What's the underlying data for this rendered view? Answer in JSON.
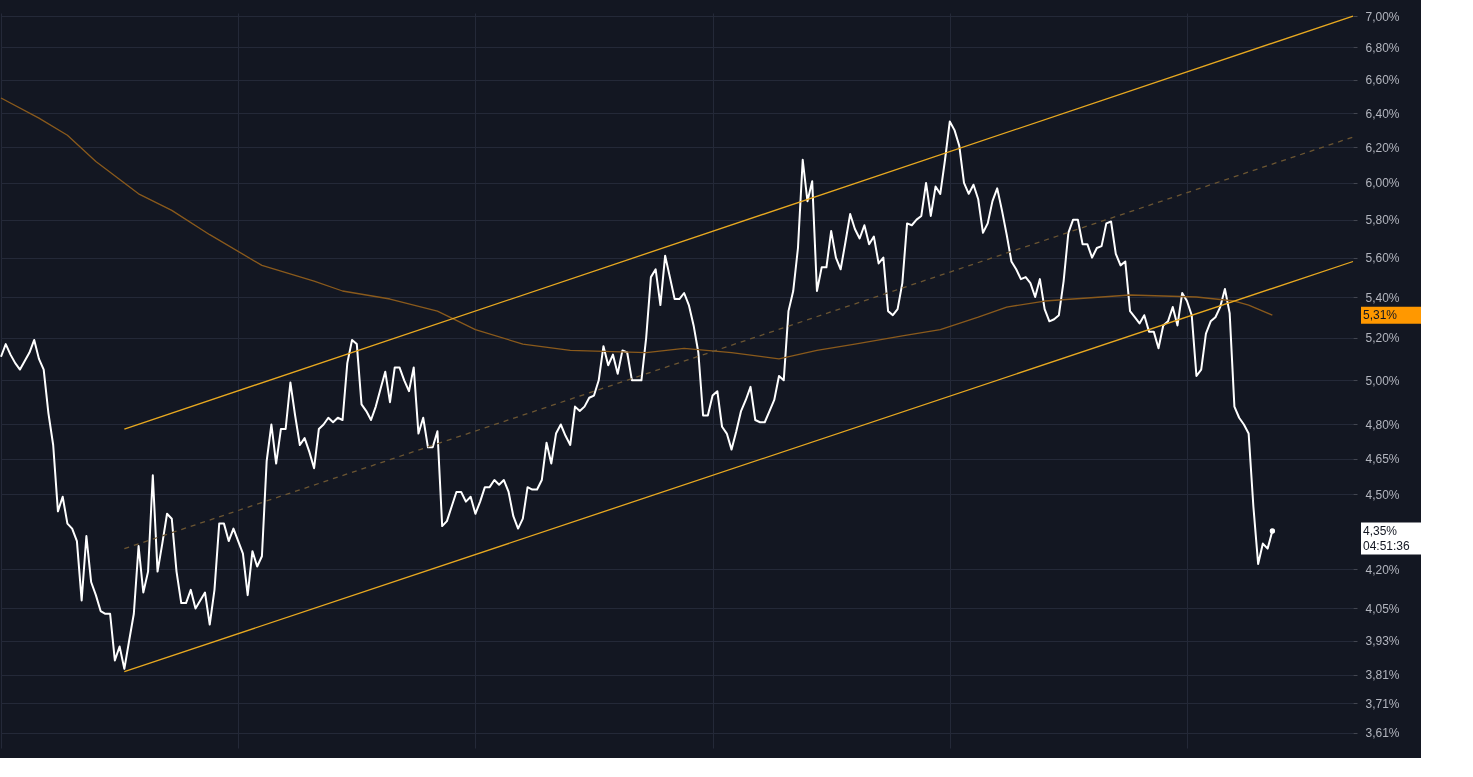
{
  "chart_data": {
    "type": "line",
    "categories": [
      null,
      null,
      null,
      null,
      null,
      null,
      null,
      null,
      null,
      null,
      null,
      null,
      null,
      null,
      null,
      null,
      null,
      null,
      null,
      null,
      null,
      null,
      null,
      null,
      null,
      null,
      null,
      null,
      null,
      null,
      null,
      null,
      null,
      null,
      null,
      null,
      null,
      null,
      null,
      null,
      null,
      null,
      null,
      null,
      null,
      null,
      null,
      null,
      null,
      null,
      null,
      null,
      null,
      null,
      null,
      null,
      null,
      null,
      null,
      null,
      null,
      null,
      null,
      null,
      null,
      null,
      null,
      null,
      null,
      null,
      null,
      null,
      null,
      null,
      null,
      null,
      null,
      null,
      null,
      null,
      null,
      null,
      null,
      null,
      null,
      null,
      null,
      null,
      null,
      null,
      null,
      null,
      null,
      null,
      null,
      null,
      null,
      null,
      null,
      null,
      null,
      null,
      null,
      null,
      null,
      null,
      null,
      null,
      null,
      null,
      null,
      null,
      null,
      null,
      null,
      null,
      null,
      null,
      null,
      null,
      null,
      null,
      null,
      null,
      null,
      null,
      null,
      null,
      null,
      null,
      null,
      null,
      null,
      null,
      null,
      null,
      null,
      null,
      null,
      null,
      null,
      null,
      null,
      null,
      null,
      null,
      null,
      null,
      null,
      null,
      null,
      null,
      null,
      null,
      null,
      null,
      null,
      null,
      null,
      null,
      null,
      null,
      null,
      null,
      null,
      null,
      null,
      null,
      null,
      null,
      null,
      null,
      null,
      null,
      null,
      null,
      null,
      null,
      null,
      null,
      null,
      null,
      null,
      null,
      null,
      null,
      null,
      null,
      null,
      null,
      null,
      null,
      null,
      null,
      null,
      null,
      null,
      null,
      null,
      null,
      null,
      null,
      null,
      null,
      null,
      null,
      null,
      null,
      null,
      null,
      null,
      null,
      null,
      null,
      null,
      null,
      null,
      null,
      null,
      null,
      null,
      null,
      null,
      null,
      null,
      null,
      null,
      null,
      null,
      null,
      null,
      null,
      null,
      null,
      null,
      null,
      null,
      null,
      null,
      null,
      null,
      null,
      null,
      null,
      null,
      null,
      null,
      null,
      null,
      null,
      null,
      null,
      null,
      null,
      null,
      null,
      null,
      null,
      null,
      null,
      null,
      null,
      null,
      null,
      null,
      null,
      null,
      null,
      null,
      null,
      null,
      null,
      null,
      null,
      null,
      null,
      null,
      null,
      null,
      null,
      null,
      null,
      null,
      null,
      null,
      null
    ],
    "ylim": [
      3.56,
      7.02
    ],
    "log": true,
    "yticks": [
      {
        "value": 3.61,
        "label": "3,61%"
      },
      {
        "value": 3.71,
        "label": "3,71%"
      },
      {
        "value": 3.81,
        "label": "3,81%"
      },
      {
        "value": 3.93,
        "label": "3,93%"
      },
      {
        "value": 4.05,
        "label": "4,05%"
      },
      {
        "value": 4.2,
        "label": "4,20%"
      },
      {
        "value": 4.5,
        "label": "4,50%"
      },
      {
        "value": 4.65,
        "label": "4,65%"
      },
      {
        "value": 4.8,
        "label": "4,80%"
      },
      {
        "value": 5.0,
        "label": "5,00%"
      },
      {
        "value": 5.2,
        "label": "5,20%"
      },
      {
        "value": 5.4,
        "label": "5,40%"
      },
      {
        "value": 5.6,
        "label": "5,60%"
      },
      {
        "value": 5.8,
        "label": "5,80%"
      },
      {
        "value": 6.0,
        "label": "6,00%"
      },
      {
        "value": 6.2,
        "label": "6,20%"
      },
      {
        "value": 6.4,
        "label": "6,40%"
      },
      {
        "value": 6.6,
        "label": "6,60%"
      },
      {
        "value": 6.8,
        "label": "6,80%"
      },
      {
        "value": 7.0,
        "label": "7,00%"
      }
    ],
    "tick_labels": "y",
    "grid": true,
    "marker": "none",
    "series": [
      {
        "color": "#ffffff",
        "line_style": "solid",
        "values": [
          5.11,
          5.17,
          5.12,
          5.08,
          5.05,
          5.09,
          5.13,
          5.19,
          5.1,
          5.05,
          4.85,
          4.71,
          4.43,
          4.49,
          4.38,
          4.36,
          4.31,
          4.08,
          4.33,
          4.15,
          4.1,
          4.04,
          4.03,
          4.03,
          3.86,
          3.91,
          3.83,
          3.93,
          4.03,
          4.29,
          4.11,
          4.19,
          4.58,
          4.19,
          4.3,
          4.42,
          4.4,
          4.19,
          4.07,
          4.07,
          4.12,
          4.05,
          4.08,
          4.11,
          3.99,
          4.12,
          4.38,
          4.38,
          4.31,
          4.36,
          4.31,
          4.26,
          4.1,
          4.27,
          4.21,
          4.25,
          4.64,
          4.8,
          4.63,
          4.78,
          4.78,
          4.99,
          4.84,
          4.71,
          4.74,
          4.68,
          4.61,
          4.78,
          4.8,
          4.83,
          4.81,
          4.83,
          4.82,
          5.08,
          5.19,
          5.17,
          4.89,
          4.86,
          4.82,
          4.88,
          4.96,
          5.04,
          4.9,
          5.06,
          5.06,
          5.0,
          4.95,
          5.06,
          4.76,
          4.83,
          4.7,
          4.7,
          4.77,
          4.37,
          4.39,
          4.45,
          4.51,
          4.51,
          4.47,
          4.49,
          4.42,
          4.47,
          4.53,
          4.53,
          4.56,
          4.54,
          4.56,
          4.51,
          4.41,
          4.36,
          4.4,
          4.53,
          4.52,
          4.52,
          4.56,
          4.72,
          4.63,
          4.76,
          4.8,
          4.75,
          4.71,
          4.88,
          4.86,
          4.88,
          4.92,
          4.93,
          5.0,
          5.16,
          5.07,
          5.12,
          5.03,
          5.14,
          5.13,
          5.0,
          5.0,
          5.0,
          5.2,
          5.5,
          5.54,
          5.36,
          5.61,
          5.5,
          5.39,
          5.39,
          5.42,
          5.36,
          5.26,
          5.13,
          4.84,
          4.84,
          4.93,
          4.95,
          4.79,
          4.76,
          4.69,
          4.77,
          4.86,
          4.91,
          4.97,
          4.82,
          4.81,
          4.81,
          4.86,
          4.91,
          5.02,
          5.0,
          5.33,
          5.43,
          5.65,
          6.13,
          5.9,
          6.01,
          5.43,
          5.55,
          5.55,
          5.74,
          5.6,
          5.54,
          5.68,
          5.83,
          5.75,
          5.7,
          5.77,
          5.67,
          5.71,
          5.57,
          5.6,
          5.33,
          5.31,
          5.34,
          5.47,
          5.78,
          5.77,
          5.8,
          5.82,
          6.0,
          5.82,
          5.98,
          5.94,
          6.13,
          6.35,
          6.3,
          6.21,
          6.0,
          5.94,
          5.99,
          5.91,
          5.73,
          5.78,
          5.9,
          5.97,
          5.85,
          5.72,
          5.58,
          5.54,
          5.49,
          5.5,
          5.47,
          5.4,
          5.49,
          5.34,
          5.28,
          5.29,
          5.31,
          5.48,
          5.73,
          5.8,
          5.8,
          5.67,
          5.67,
          5.6,
          5.65,
          5.66,
          5.78,
          5.79,
          5.62,
          5.56,
          5.58,
          5.33,
          5.3,
          5.27,
          5.31,
          5.23,
          5.23,
          5.15,
          5.26,
          5.28,
          5.35,
          5.26,
          5.42,
          5.38,
          5.31,
          5.02,
          5.05,
          5.22,
          5.28,
          5.3,
          5.35,
          5.44,
          5.32,
          4.88,
          4.83,
          4.8,
          4.76,
          4.45,
          4.22,
          4.3,
          4.28,
          4.35,
          null,
          null,
          null,
          null,
          null,
          null,
          null,
          null,
          null,
          null,
          null,
          null,
          null,
          null,
          null,
          null,
          null
        ]
      },
      {
        "color": "#8a5a1c",
        "line_style": "solid",
        "values": [
          6.49,
          null,
          null,
          null,
          null,
          null,
          null,
          null,
          6.37,
          null,
          null,
          null,
          null,
          null,
          6.27,
          null,
          null,
          null,
          null,
          null,
          6.12,
          null,
          null,
          null,
          null,
          null,
          null,
          null,
          null,
          5.94,
          null,
          null,
          null,
          null,
          null,
          null,
          5.85,
          null,
          null,
          null,
          null,
          null,
          null,
          null,
          5.72,
          null,
          null,
          null,
          null,
          null,
          null,
          null,
          null,
          null,
          null,
          5.56,
          null,
          null,
          null,
          null,
          null,
          null,
          null,
          null,
          null,
          null,
          5.48,
          null,
          null,
          null,
          null,
          null,
          5.43,
          null,
          null,
          null,
          null,
          null,
          null,
          null,
          null,
          null,
          5.39,
          null,
          null,
          null,
          null,
          null,
          null,
          null,
          null,
          null,
          5.33,
          null,
          null,
          null,
          null,
          null,
          null,
          null,
          5.24,
          null,
          null,
          null,
          null,
          null,
          null,
          null,
          null,
          null,
          5.17,
          null,
          null,
          null,
          null,
          null,
          null,
          null,
          null,
          null,
          5.14,
          null,
          null,
          null,
          null,
          null,
          null,
          null,
          null,
          null,
          null,
          null,
          null,
          null,
          null,
          null,
          5.13,
          null,
          null,
          null,
          null,
          null,
          null,
          null,
          5.15,
          null,
          null,
          null,
          null,
          null,
          null,
          null,
          null,
          null,
          5.13,
          null,
          null,
          null,
          null,
          null,
          null,
          null,
          null,
          null,
          5.1,
          null,
          null,
          null,
          5.12,
          null,
          null,
          null,
          5.14,
          null,
          null,
          null,
          null,
          null,
          null,
          null,
          5.17,
          null,
          null,
          null,
          null,
          null,
          null,
          null,
          null,
          null,
          5.21,
          null,
          null,
          null,
          null,
          null,
          null,
          null,
          5.24,
          null,
          null,
          null,
          null,
          null,
          null,
          null,
          5.3,
          null,
          null,
          null,
          null,
          null,
          5.35,
          null,
          null,
          null,
          null,
          null,
          null,
          null,
          5.38,
          null,
          null,
          null,
          null,
          null,
          null,
          null,
          null,
          null,
          null,
          null,
          null,
          null,
          null,
          null,
          null,
          null,
          5.41,
          null,
          null,
          null,
          null,
          null,
          null,
          null,
          null,
          null,
          null,
          null,
          null,
          null,
          5.4,
          null,
          null,
          null,
          null,
          null,
          null,
          null,
          5.38,
          null,
          null,
          5.36,
          null,
          null,
          null,
          null,
          5.31,
          null,
          null,
          null,
          null,
          null,
          null,
          null,
          null,
          null,
          null,
          null,
          null,
          null,
          null,
          null,
          null,
          null
        ]
      },
      {
        "color": "#e8a920",
        "line_style": "solid",
        "values": [
          null,
          null,
          null,
          null,
          null,
          null,
          null,
          null,
          null,
          null,
          null,
          null,
          null,
          null,
          null,
          null,
          null,
          null,
          null,
          null,
          null,
          null,
          null,
          null,
          null,
          null,
          4.78,
          null,
          null,
          null,
          null,
          null,
          null,
          null,
          null,
          null,
          null,
          null,
          null,
          null,
          null,
          null,
          null,
          null,
          null,
          null,
          null,
          null,
          null,
          null,
          null,
          null,
          null,
          null,
          null,
          null,
          null,
          null,
          null,
          null,
          null,
          null,
          null,
          null,
          null,
          null,
          null,
          null,
          null,
          null,
          null,
          null,
          null,
          null,
          null,
          null,
          null,
          null,
          null,
          null,
          null,
          null,
          null,
          null,
          null,
          null,
          null,
          null,
          null,
          null,
          null,
          null,
          null,
          null,
          null,
          null,
          null,
          null,
          null,
          null,
          null,
          null,
          null,
          null,
          null,
          null,
          null,
          null,
          null,
          null,
          null,
          null,
          null,
          null,
          null,
          null,
          null,
          null,
          null,
          null,
          null,
          null,
          null,
          null,
          null,
          null,
          null,
          null,
          null,
          null,
          null,
          null,
          null,
          null,
          null,
          null,
          null,
          null,
          null,
          null,
          null,
          null,
          null,
          null,
          null,
          null,
          null,
          null,
          null,
          null,
          null,
          null,
          null,
          null,
          null,
          null,
          null,
          null,
          null,
          null,
          null,
          null,
          null,
          null,
          null,
          null,
          null,
          null,
          null,
          null,
          null,
          null,
          null,
          null,
          null,
          null,
          null,
          null,
          null,
          null,
          null,
          null,
          null,
          null,
          null,
          null,
          null,
          null,
          null,
          null,
          null,
          null,
          null,
          null,
          null,
          null,
          null,
          null,
          null,
          null,
          null,
          null,
          null,
          null,
          null,
          null,
          null,
          null,
          null,
          null,
          null,
          null,
          null,
          null,
          null,
          null,
          null,
          null,
          null,
          null,
          null,
          null,
          null,
          null,
          null,
          null,
          null,
          null,
          null,
          null,
          null,
          null,
          null,
          null,
          null,
          null,
          null,
          null,
          null,
          null,
          null,
          null,
          null,
          null,
          null,
          null,
          null,
          null,
          null,
          null,
          null,
          null,
          null,
          null,
          null,
          null,
          null,
          null,
          null,
          null,
          null,
          null,
          null,
          null,
          null,
          null,
          null,
          null,
          null,
          null,
          null,
          null,
          null,
          null,
          null,
          null,
          null,
          null,
          null,
          null,
          null,
          null,
          null,
          null,
          null,
          7.0
        ]
      },
      {
        "color": "#e8a920",
        "line_style": "solid",
        "values": [
          null,
          null,
          null,
          null,
          null,
          null,
          null,
          null,
          null,
          null,
          null,
          null,
          null,
          null,
          null,
          null,
          null,
          null,
          null,
          null,
          null,
          null,
          null,
          null,
          null,
          null,
          3.82,
          null,
          null,
          null,
          null,
          null,
          null,
          null,
          null,
          null,
          null,
          null,
          null,
          null,
          null,
          null,
          null,
          null,
          null,
          null,
          null,
          null,
          null,
          null,
          null,
          null,
          null,
          null,
          null,
          null,
          null,
          null,
          null,
          null,
          null,
          null,
          null,
          null,
          null,
          null,
          null,
          null,
          null,
          null,
          null,
          null,
          null,
          null,
          null,
          null,
          null,
          null,
          null,
          null,
          null,
          null,
          null,
          null,
          null,
          null,
          null,
          null,
          null,
          null,
          null,
          null,
          null,
          null,
          null,
          null,
          null,
          null,
          null,
          null,
          null,
          null,
          null,
          null,
          null,
          null,
          null,
          null,
          null,
          null,
          null,
          null,
          null,
          null,
          null,
          null,
          null,
          null,
          null,
          null,
          null,
          null,
          null,
          null,
          null,
          null,
          null,
          null,
          null,
          null,
          null,
          null,
          null,
          null,
          null,
          null,
          null,
          null,
          null,
          null,
          null,
          null,
          null,
          null,
          null,
          null,
          null,
          null,
          null,
          null,
          null,
          null,
          null,
          null,
          null,
          null,
          null,
          null,
          null,
          null,
          null,
          null,
          null,
          null,
          null,
          null,
          null,
          null,
          null,
          null,
          null,
          null,
          null,
          null,
          null,
          null,
          null,
          null,
          null,
          null,
          null,
          null,
          null,
          null,
          null,
          null,
          null,
          null,
          null,
          null,
          null,
          null,
          null,
          null,
          null,
          null,
          null,
          null,
          null,
          null,
          null,
          null,
          null,
          null,
          null,
          null,
          null,
          null,
          null,
          null,
          null,
          null,
          null,
          null,
          null,
          null,
          null,
          null,
          null,
          null,
          null,
          null,
          null,
          null,
          null,
          null,
          null,
          null,
          null,
          null,
          null,
          null,
          null,
          null,
          null,
          null,
          null,
          null,
          null,
          null,
          null,
          null,
          null,
          null,
          null,
          null,
          null,
          null,
          null,
          null,
          null,
          null,
          null,
          null,
          null,
          null,
          null,
          null,
          null,
          null,
          null,
          null,
          null,
          null,
          null,
          null,
          null,
          null,
          null,
          null,
          null,
          null,
          null,
          null,
          null,
          null,
          null,
          null,
          null,
          null,
          null,
          null,
          null,
          null,
          null,
          5.58
        ]
      },
      {
        "color": "#6b5532",
        "line_style": "dashed",
        "values": [
          null,
          null,
          null,
          null,
          null,
          null,
          null,
          null,
          null,
          null,
          null,
          null,
          null,
          null,
          null,
          null,
          null,
          null,
          null,
          null,
          null,
          null,
          null,
          null,
          null,
          null,
          4.28,
          null,
          null,
          null,
          null,
          null,
          null,
          null,
          null,
          null,
          null,
          null,
          null,
          null,
          null,
          null,
          null,
          null,
          null,
          null,
          null,
          null,
          null,
          null,
          null,
          null,
          null,
          null,
          null,
          null,
          null,
          null,
          null,
          null,
          null,
          null,
          null,
          null,
          null,
          null,
          null,
          null,
          null,
          null,
          null,
          null,
          null,
          null,
          null,
          null,
          null,
          null,
          null,
          null,
          null,
          null,
          null,
          null,
          null,
          null,
          null,
          null,
          null,
          null,
          null,
          null,
          null,
          null,
          null,
          null,
          null,
          null,
          null,
          null,
          null,
          null,
          null,
          null,
          null,
          null,
          null,
          null,
          null,
          null,
          null,
          null,
          null,
          null,
          null,
          null,
          null,
          null,
          null,
          null,
          null,
          null,
          null,
          null,
          null,
          null,
          null,
          null,
          null,
          null,
          null,
          null,
          null,
          null,
          null,
          null,
          null,
          null,
          null,
          null,
          null,
          null,
          null,
          null,
          null,
          null,
          null,
          null,
          null,
          null,
          null,
          null,
          null,
          null,
          null,
          null,
          null,
          null,
          null,
          null,
          null,
          null,
          null,
          null,
          null,
          null,
          null,
          null,
          null,
          null,
          null,
          null,
          null,
          null,
          null,
          null,
          null,
          null,
          null,
          null,
          null,
          null,
          null,
          null,
          null,
          null,
          null,
          null,
          null,
          null,
          null,
          null,
          null,
          null,
          null,
          null,
          null,
          null,
          null,
          null,
          null,
          null,
          null,
          null,
          null,
          null,
          null,
          null,
          null,
          null,
          null,
          null,
          null,
          null,
          null,
          null,
          null,
          null,
          null,
          null,
          null,
          null,
          null,
          null,
          null,
          null,
          null,
          null,
          null,
          null,
          null,
          null,
          null,
          null,
          null,
          null,
          null,
          null,
          null,
          null,
          null,
          null,
          null,
          null,
          null,
          null,
          null,
          null,
          null,
          null,
          null,
          null,
          null,
          null,
          null,
          null,
          null,
          null,
          null,
          null,
          null,
          null,
          null,
          null,
          null,
          null,
          null,
          null,
          null,
          null,
          null,
          null,
          null,
          null,
          null,
          null,
          null,
          null,
          null,
          null,
          null,
          null,
          null,
          null,
          null,
          6.26
        ]
      }
    ],
    "annotations": [
      "5,31%",
      "4,35%",
      "04:51:36"
    ]
  }
}
